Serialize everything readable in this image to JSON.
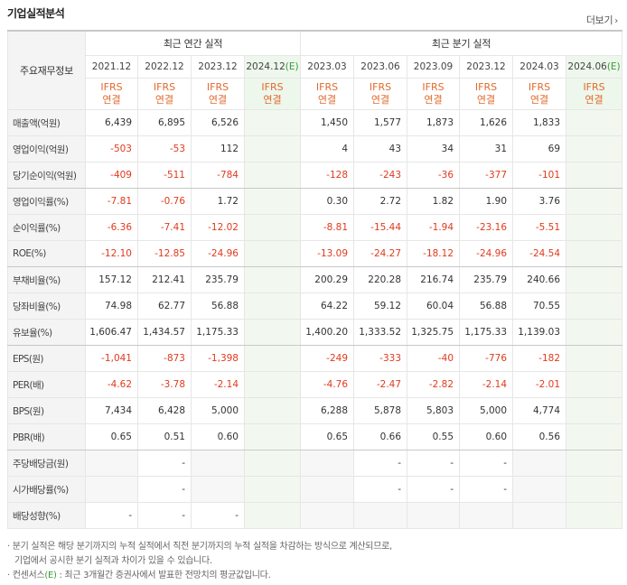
{
  "title": "기업실적분석",
  "more_label": "더보기",
  "more_icon": "chevron-right-icon",
  "header": {
    "row_label": "주요재무정보",
    "annual_group": "최근 연간 실적",
    "quarter_group": "최근 분기 실적",
    "annual_periods": [
      "2021.12",
      "2022.12",
      "2023.12",
      "2024.12"
    ],
    "quarter_periods": [
      "2023.03",
      "2023.06",
      "2023.09",
      "2023.12",
      "2024.03",
      "2024.06"
    ],
    "estimate_mark": "(E)",
    "ifrs_top": "IFRS",
    "ifrs_bottom": "연결"
  },
  "rows": [
    {
      "label": "매출액(억원)",
      "annual": [
        "6,439",
        "6,895",
        "6,526",
        ""
      ],
      "quarter": [
        "1,450",
        "1,577",
        "1,873",
        "1,626",
        "1,833",
        ""
      ]
    },
    {
      "label": "영업이익(억원)",
      "annual": [
        "-503",
        "-53",
        "112",
        ""
      ],
      "quarter": [
        "4",
        "43",
        "34",
        "31",
        "69",
        ""
      ]
    },
    {
      "label": "당기순이익(억원)",
      "annual": [
        "-409",
        "-511",
        "-784",
        ""
      ],
      "quarter": [
        "-128",
        "-243",
        "-36",
        "-377",
        "-101",
        ""
      ]
    },
    {
      "label": "영업이익률(%)",
      "annual": [
        "-7.81",
        "-0.76",
        "1.72",
        ""
      ],
      "quarter": [
        "0.30",
        "2.72",
        "1.82",
        "1.90",
        "3.76",
        ""
      ]
    },
    {
      "label": "순이익률(%)",
      "annual": [
        "-6.36",
        "-7.41",
        "-12.02",
        ""
      ],
      "quarter": [
        "-8.81",
        "-15.44",
        "-1.94",
        "-23.16",
        "-5.51",
        ""
      ]
    },
    {
      "label": "ROE(%)",
      "annual": [
        "-12.10",
        "-12.85",
        "-24.96",
        ""
      ],
      "quarter": [
        "-13.09",
        "-24.27",
        "-18.12",
        "-24.96",
        "-24.54",
        ""
      ]
    },
    {
      "label": "부채비율(%)",
      "annual": [
        "157.12",
        "212.41",
        "235.79",
        ""
      ],
      "quarter": [
        "200.29",
        "220.28",
        "216.74",
        "235.79",
        "240.66",
        ""
      ]
    },
    {
      "label": "당좌비율(%)",
      "annual": [
        "74.98",
        "62.77",
        "56.88",
        ""
      ],
      "quarter": [
        "64.22",
        "59.12",
        "60.04",
        "56.88",
        "70.55",
        ""
      ]
    },
    {
      "label": "유보율(%)",
      "annual": [
        "1,606.47",
        "1,434.57",
        "1,175.33",
        ""
      ],
      "quarter": [
        "1,400.20",
        "1,333.52",
        "1,325.75",
        "1,175.33",
        "1,139.03",
        ""
      ]
    },
    {
      "label": "EPS(원)",
      "annual": [
        "-1,041",
        "-873",
        "-1,398",
        ""
      ],
      "quarter": [
        "-249",
        "-333",
        "-40",
        "-776",
        "-182",
        ""
      ]
    },
    {
      "label": "PER(배)",
      "annual": [
        "-4.62",
        "-3.78",
        "-2.14",
        ""
      ],
      "quarter": [
        "-4.76",
        "-2.47",
        "-2.82",
        "-2.14",
        "-2.01",
        ""
      ]
    },
    {
      "label": "BPS(원)",
      "annual": [
        "7,434",
        "6,428",
        "5,000",
        ""
      ],
      "quarter": [
        "6,288",
        "5,878",
        "5,803",
        "5,000",
        "4,774",
        ""
      ]
    },
    {
      "label": "PBR(배)",
      "annual": [
        "0.65",
        "0.51",
        "0.60",
        ""
      ],
      "quarter": [
        "0.65",
        "0.66",
        "0.55",
        "0.60",
        "0.56",
        ""
      ]
    },
    {
      "label": "주당배당금(원)",
      "annual": [
        "",
        "-",
        "",
        ""
      ],
      "quarter": [
        "",
        "-",
        "-",
        "-",
        "",
        ""
      ]
    },
    {
      "label": "시가배당률(%)",
      "annual": [
        "",
        "-",
        "",
        ""
      ],
      "quarter": [
        "",
        "-",
        "-",
        "-",
        "",
        ""
      ]
    },
    {
      "label": "배당성향(%)",
      "annual": [
        "-",
        "-",
        "-",
        ""
      ],
      "quarter": [
        "",
        "",
        "",
        "",
        "",
        ""
      ]
    }
  ],
  "notes": {
    "line1": "· 분기 실적은 해당 분기까지의 누적 실적에서 직전 분기까지의 누적 실적을 차감하는 방식으로 계산되므로,",
    "line2": "  기업에서 공시한 분기 실적과 차이가 있을 수 있습니다.",
    "line3_prefix": "· 컨센서스",
    "line3_mark": "(E)",
    "line3_suffix": " : 최근 3개월간 증권사에서 발표한 전망치의 평균값입니다."
  },
  "colors": {
    "negative": "#e03a1c",
    "ifrs": "#e26a2c",
    "estimate_mark": "#3a9a3a",
    "estimate_bg": "#eef7ec",
    "label_bg": "#f4f4f4"
  }
}
